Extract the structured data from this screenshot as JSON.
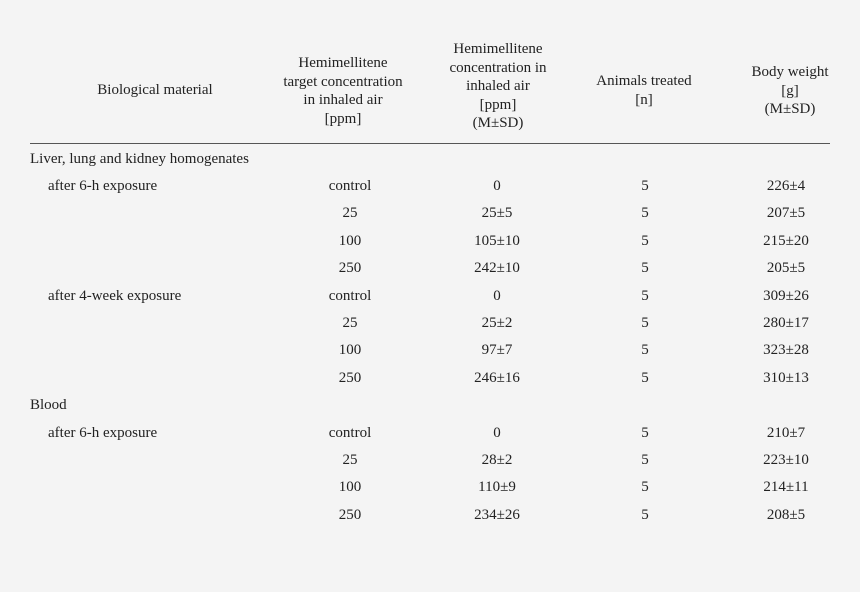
{
  "headers": [
    [
      "Biological material"
    ],
    [
      "Hemimellitene",
      "target concentration",
      "in inhaled air",
      "[ppm]"
    ],
    [
      "Hemimellitene",
      "concentration in",
      "inhaled air",
      "[ppm]",
      "(M±SD)"
    ],
    [
      "Animals treated",
      "[n]"
    ],
    [
      "Body weight",
      "[g]",
      "(M±SD)"
    ]
  ],
  "sections": [
    {
      "title": "Liver, lung and kidney homogenates",
      "groups": [
        {
          "label": "after 6-h exposure",
          "rows": [
            [
              "control",
              "0",
              "5",
              "226±4"
            ],
            [
              "25",
              "25±5",
              "5",
              "207±5"
            ],
            [
              "100",
              "105±10",
              "5",
              "215±20"
            ],
            [
              "250",
              "242±10",
              "5",
              "205±5"
            ]
          ]
        },
        {
          "label": "after 4-week exposure",
          "rows": [
            [
              "control",
              "0",
              "5",
              "309±26"
            ],
            [
              "25",
              "25±2",
              "5",
              "280±17"
            ],
            [
              "100",
              "97±7",
              "5",
              "323±28"
            ],
            [
              "250",
              "246±16",
              "5",
              "310±13"
            ]
          ]
        }
      ]
    },
    {
      "title": "Blood",
      "groups": [
        {
          "label": "after 6-h exposure",
          "rows": [
            [
              "control",
              "0",
              "5",
              "210±7"
            ],
            [
              "25",
              "28±2",
              "5",
              "223±10"
            ],
            [
              "100",
              "110±9",
              "5",
              "214±11"
            ],
            [
              "250",
              "234±26",
              "5",
              "208±5"
            ]
          ]
        }
      ]
    }
  ]
}
